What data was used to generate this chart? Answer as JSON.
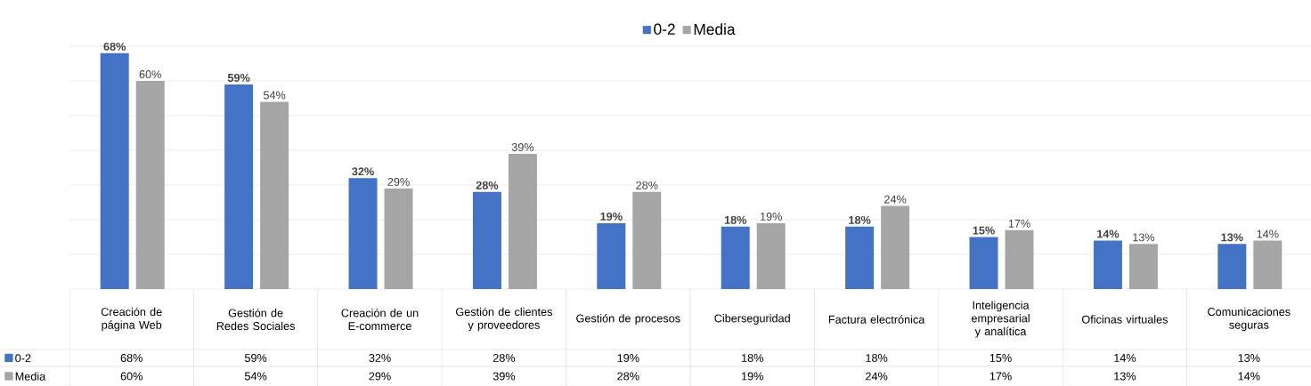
{
  "chart_data": {
    "type": "bar",
    "categories": [
      "Creación de página Web",
      "Gestión de Redes Sociales",
      "Creación de un E-commerce",
      "Gestión de clientes y proveedores",
      "Gestión de procesos",
      "Ciberseguridad",
      "Factura electrónica",
      "Inteligencia empresarial y analítica",
      "Oficinas virtuales",
      "Comunicaciones seguras"
    ],
    "series": [
      {
        "name": "0-2",
        "color": "#4472c4",
        "values": [
          68,
          59,
          32,
          28,
          19,
          18,
          18,
          15,
          14,
          13
        ],
        "value_labels": [
          "68%",
          "59%",
          "32%",
          "28%",
          "19%",
          "18%",
          "18%",
          "15%",
          "14%",
          "13%"
        ]
      },
      {
        "name": "Media",
        "color": "#a5a5a5",
        "values": [
          60,
          54,
          29,
          39,
          28,
          19,
          24,
          17,
          13,
          14
        ],
        "value_labels": [
          "60%",
          "54%",
          "29%",
          "39%",
          "28%",
          "19%",
          "24%",
          "17%",
          "13%",
          "14%"
        ]
      }
    ],
    "ylim": [
      0,
      70
    ],
    "yticks": [
      {
        "value": 0,
        "label": null
      },
      {
        "value": 10,
        "label": null
      },
      {
        "value": 20,
        "label": null
      },
      {
        "value": 30,
        "label": null
      },
      {
        "value": 40,
        "label": null
      },
      {
        "value": 50,
        "label": null
      },
      {
        "value": 60,
        "label": null
      },
      {
        "value": 70,
        "label": null
      }
    ],
    "tick_labels": "x",
    "grid": "y",
    "legend": "top"
  }
}
